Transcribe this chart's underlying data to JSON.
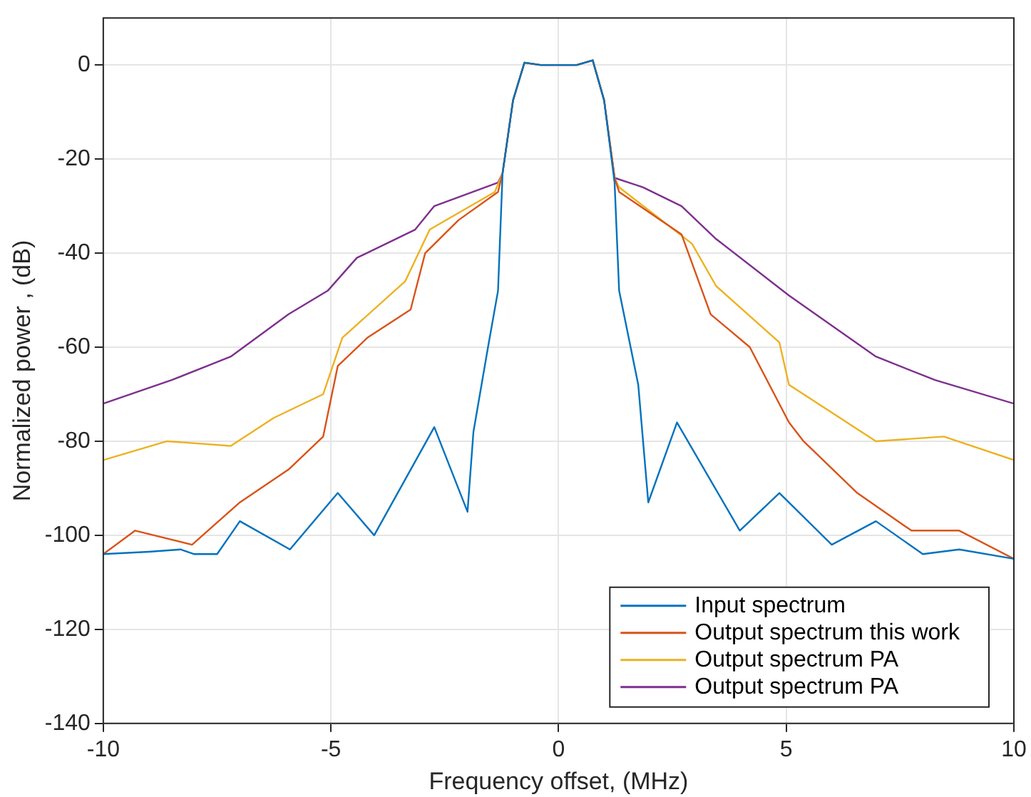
{
  "chart_data": {
    "type": "line",
    "xlabel": "Frequency offset, (MHz)",
    "ylabel": "Normalized power , (dB)",
    "xlim": [
      -10,
      10
    ],
    "xticks": [
      -10,
      -5,
      0,
      5,
      10
    ],
    "ylim": [
      -140,
      10
    ],
    "yticks": [
      -140,
      -120,
      -100,
      -80,
      -60,
      -40,
      -20,
      0
    ],
    "grid": true,
    "legend": "bottom right",
    "marker": "none",
    "line_style": "solid",
    "series": [
      {
        "name": "Input spectrum",
        "color": "#0072bd",
        "x": [
          -10,
          -9,
          -8.3,
          -8,
          -7.5,
          -7,
          -5.9,
          -4.85,
          -4.05,
          -2.73,
          -2,
          -1.87,
          -1.55,
          -1.33,
          -1.23,
          -1,
          -0.75,
          -0.4,
          0,
          0.4,
          0.75,
          1,
          1.23,
          1.33,
          1.75,
          1.97,
          2.6,
          3.98,
          4.85,
          6,
          6.97,
          8,
          8.8,
          10
        ],
        "values": [
          -104,
          -103.5,
          -103,
          -104,
          -104,
          -97,
          -103,
          -91,
          -100,
          -77,
          -95,
          -78,
          -60,
          -48,
          -23,
          -7.5,
          0.5,
          0,
          0,
          0,
          1,
          -7.5,
          -25,
          -48,
          -68,
          -93,
          -76,
          -99,
          -91,
          -102,
          -97,
          -104,
          -103,
          -105
        ]
      },
      {
        "name": "Output spectrum this work",
        "color": "#d95319",
        "x": [
          -10,
          -9.3,
          -8.05,
          -7,
          -5.93,
          -5.17,
          -4.85,
          -4.2,
          -3.25,
          -2.93,
          -2.2,
          -1.33,
          -1.23,
          -1,
          -0.75,
          -0.4,
          0,
          0.4,
          0.75,
          1,
          1.23,
          1.33,
          2.7,
          3.34,
          4.2,
          5.06,
          5.38,
          6.56,
          7.75,
          8.8,
          10
        ],
        "values": [
          -104,
          -99,
          -102,
          -93,
          -86,
          -79,
          -64,
          -58,
          -52,
          -40,
          -33,
          -27,
          -23,
          -7.5,
          0.5,
          0,
          0,
          0,
          1,
          -7.5,
          -24,
          -27,
          -36,
          -53,
          -60,
          -76,
          -80,
          -91,
          -99,
          -99,
          -105
        ]
      },
      {
        "name": "Output spectrum PA",
        "color": "#edb120",
        "x": [
          -10,
          -8.6,
          -7.2,
          -6.25,
          -5.17,
          -4.75,
          -3.37,
          -2.83,
          -1.4,
          -1.23,
          -1,
          -0.75,
          -0.4,
          0,
          0.4,
          0.75,
          1,
          1.23,
          1.33,
          2.93,
          3.46,
          4.85,
          5.06,
          6.97,
          8.46,
          10
        ],
        "values": [
          -84,
          -80,
          -81,
          -75,
          -70,
          -58,
          -46,
          -35,
          -27,
          -23,
          -7.5,
          0.5,
          0,
          0,
          0,
          1,
          -7.5,
          -24,
          -26,
          -38,
          -47,
          -59,
          -68,
          -80,
          -79,
          -84
        ]
      },
      {
        "name": "Output spectrum PA",
        "color": "#7e2f8e",
        "x": [
          -10,
          -8.5,
          -7.2,
          -5.93,
          -5.07,
          -4.43,
          -3.15,
          -2.73,
          -1.33,
          -1.23,
          -1,
          -0.75,
          -0.4,
          0,
          0.4,
          0.75,
          1,
          1.23,
          1.85,
          2.7,
          3.46,
          5.06,
          6.97,
          8.27,
          10
        ],
        "values": [
          -72,
          -67,
          -62,
          -53,
          -48,
          -41,
          -35,
          -30,
          -25,
          -23,
          -7.5,
          0.5,
          0,
          0,
          0,
          1,
          -7.5,
          -24,
          -26,
          -30,
          -37,
          -49,
          -62,
          -67,
          -72
        ]
      }
    ]
  }
}
